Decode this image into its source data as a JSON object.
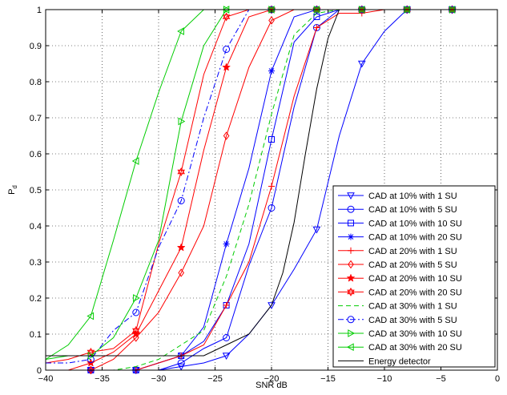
{
  "chart_data": {
    "type": "line",
    "title": "",
    "xlabel": "SNR dB",
    "ylabel": "P",
    "ylabel_subscript": "d",
    "xlim": [
      -40,
      0
    ],
    "ylim": [
      0,
      1
    ],
    "xticks": [
      -40,
      -35,
      -30,
      -25,
      -20,
      -15,
      -10,
      -5,
      0
    ],
    "yticks": [
      0,
      0.1,
      0.2,
      0.3,
      0.4,
      0.5,
      0.6,
      0.7,
      0.8,
      0.9,
      1
    ],
    "xtick_labels": [
      "−40",
      "−35",
      "−30",
      "−25",
      "−20",
      "−15",
      "−10",
      "−5",
      "0"
    ],
    "ytick_labels": [
      "0",
      "0.1",
      "0.2",
      "0.3",
      "0.4",
      "0.5",
      "0.6",
      "0.7",
      "0.8",
      "0.9",
      "1"
    ],
    "grid": true,
    "legend_position": "lower-right",
    "series": [
      {
        "name": "CAD at 10% with 1 SU",
        "color": "#0000ff",
        "dash": "solid",
        "marker": "triangle-down",
        "x": [
          -40,
          -38,
          -36,
          -34,
          -32,
          -30,
          -28,
          -26,
          -24,
          -22,
          -20,
          -18,
          -16,
          -14,
          -12,
          -10,
          -8,
          -6,
          -4,
          -2,
          0
        ],
        "y": [
          0,
          0,
          0,
          0,
          0,
          0,
          0.01,
          0.02,
          0.04,
          0.1,
          0.18,
          0.28,
          0.39,
          0.65,
          0.85,
          0.94,
          1,
          1,
          1,
          1,
          1
        ]
      },
      {
        "name": "CAD at 10% with 5 SU",
        "color": "#0000ff",
        "dash": "solid",
        "marker": "circle",
        "x": [
          -40,
          -38,
          -36,
          -34,
          -32,
          -30,
          -28,
          -26,
          -24,
          -22,
          -20,
          -18,
          -16,
          -14,
          -12,
          -10,
          -8,
          -6,
          -4,
          -2,
          0
        ],
        "y": [
          0,
          0,
          0,
          0,
          0,
          0,
          0.02,
          0.06,
          0.09,
          0.29,
          0.45,
          0.73,
          0.95,
          1,
          1,
          1,
          1,
          1,
          1,
          1,
          1
        ]
      },
      {
        "name": "CAD at 10% with 10 SU",
        "color": "#0000ff",
        "dash": "solid",
        "marker": "square",
        "x": [
          -40,
          -38,
          -36,
          -34,
          -32,
          -30,
          -28,
          -26,
          -24,
          -22,
          -20,
          -18,
          -16,
          -14,
          -12,
          -10,
          -8,
          -6,
          -4,
          -2,
          0
        ],
        "y": [
          0,
          0,
          0,
          0,
          0,
          0.02,
          0.04,
          0.08,
          0.18,
          0.35,
          0.64,
          0.91,
          0.98,
          1,
          1,
          1,
          1,
          1,
          1,
          1,
          1
        ]
      },
      {
        "name": "CAD at 10% with 20 SU",
        "color": "#0000ff",
        "dash": "solid",
        "marker": "asterisk",
        "x": [
          -40,
          -38,
          -36,
          -34,
          -32,
          -30,
          -28,
          -26,
          -24,
          -22,
          -20,
          -18,
          -16,
          -14,
          -12,
          -10,
          -8,
          -6,
          -4,
          -2,
          0
        ],
        "y": [
          0,
          0,
          0,
          0,
          0,
          0.02,
          0.04,
          0.12,
          0.35,
          0.56,
          0.83,
          0.98,
          1,
          1,
          1,
          1,
          1,
          1,
          1,
          1,
          1
        ]
      },
      {
        "name": "CAD at 20% with 1 SU",
        "color": "#ff0000",
        "dash": "solid",
        "marker": "plus",
        "x": [
          -40,
          -38,
          -36,
          -34,
          -32,
          -30,
          -28,
          -26,
          -24,
          -22,
          -20,
          -18,
          -16,
          -14,
          -12,
          -10,
          -8,
          -6,
          -4,
          -2,
          0
        ],
        "y": [
          0,
          0,
          0,
          0,
          0,
          0.02,
          0.04,
          0.07,
          0.18,
          0.3,
          0.51,
          0.76,
          0.95,
          0.99,
          0.99,
          1,
          1,
          1,
          1,
          1,
          1
        ]
      },
      {
        "name": "CAD at 20% with 5 SU",
        "color": "#ff0000",
        "dash": "solid",
        "marker": "diamond",
        "x": [
          -40,
          -38,
          -36,
          -34,
          -32,
          -30,
          -28,
          -26,
          -24,
          -22,
          -20,
          -18,
          -16,
          -14,
          -12,
          -10,
          -8,
          -6,
          -4,
          -2,
          0
        ],
        "y": [
          0,
          0,
          0,
          0.03,
          0.09,
          0.16,
          0.27,
          0.4,
          0.65,
          0.84,
          0.97,
          1,
          1,
          1,
          1,
          1,
          1,
          1,
          1,
          1,
          1
        ]
      },
      {
        "name": "CAD at 20% with 10 SU",
        "color": "#ff0000",
        "dash": "solid",
        "marker": "star",
        "x": [
          -40,
          -38,
          -36,
          -34,
          -32,
          -30,
          -28,
          -26,
          -24,
          -22,
          -20,
          -18,
          -16,
          -14,
          -12,
          -10,
          -8,
          -6,
          -4,
          -2,
          0
        ],
        "y": [
          0,
          0,
          0.02,
          0.05,
          0.1,
          0.22,
          0.34,
          0.61,
          0.84,
          0.98,
          1,
          1,
          1,
          1,
          1,
          1,
          1,
          1,
          1,
          1,
          1
        ]
      },
      {
        "name": "CAD at 20% with 20 SU",
        "color": "#ff0000",
        "dash": "solid",
        "marker": "hexagram",
        "x": [
          -40,
          -38,
          -36,
          -34,
          -32,
          -30,
          -28,
          -26,
          -24,
          -22,
          -20,
          -18,
          -16,
          -14,
          -12,
          -10,
          -8,
          -6,
          -4,
          -2,
          0
        ],
        "y": [
          0.02,
          0.03,
          0.05,
          0.06,
          0.11,
          0.35,
          0.55,
          0.82,
          0.98,
          1,
          1,
          1,
          1,
          1,
          1,
          1,
          1,
          1,
          1,
          1,
          1
        ]
      },
      {
        "name": "CAD at 30% with 1 SU",
        "color": "#00cc00",
        "dash": "dashed",
        "marker": "none",
        "x": [
          -40,
          -38,
          -36,
          -34,
          -32,
          -30,
          -28,
          -26,
          -24,
          -22,
          -20,
          -18,
          -16,
          -14,
          -12,
          -10,
          -8,
          -6,
          -4,
          -2,
          0
        ],
        "y": [
          0,
          0,
          0,
          0,
          0.01,
          0.03,
          0.07,
          0.11,
          0.26,
          0.46,
          0.71,
          0.93,
          0.99,
          1,
          1,
          1,
          1,
          1,
          1,
          1,
          1
        ]
      },
      {
        "name": "CAD at 30% with 5 SU",
        "color": "#0000ff",
        "dash": "dashdot",
        "marker": "circle",
        "x": [
          -40,
          -38,
          -36,
          -34,
          -32,
          -30,
          -28,
          -26,
          -24,
          -22,
          -20,
          -18,
          -16,
          -14,
          -12,
          -10,
          -8,
          -6,
          -4,
          -2,
          0
        ],
        "y": [
          0.02,
          0.02,
          0.03,
          0.11,
          0.16,
          0.34,
          0.47,
          0.7,
          0.89,
          1,
          1,
          1,
          1,
          1,
          1,
          1,
          1,
          1,
          1,
          1,
          1
        ]
      },
      {
        "name": "CAD at 30% with 10 SU",
        "color": "#00cc00",
        "dash": "solid",
        "marker": "triangle-right",
        "x": [
          -40,
          -38,
          -36,
          -34,
          -32,
          -30,
          -28,
          -26,
          -24,
          -22,
          -20,
          -18,
          -16,
          -14,
          -12,
          -10,
          -8,
          -6,
          -4,
          -2,
          0
        ],
        "y": [
          0.03,
          0.04,
          0.04,
          0.09,
          0.2,
          0.36,
          0.69,
          0.9,
          1,
          1,
          1,
          1,
          1,
          1,
          1,
          1,
          1,
          1,
          1,
          1,
          1
        ]
      },
      {
        "name": "CAD at 30% with 20 SU",
        "color": "#00cc00",
        "dash": "solid",
        "marker": "triangle-left",
        "x": [
          -40,
          -38,
          -36,
          -34,
          -32,
          -30,
          -28,
          -26,
          -24,
          -22,
          -20,
          -18,
          -16,
          -14,
          -12,
          -10,
          -8,
          -6,
          -4,
          -2,
          0
        ],
        "y": [
          0.03,
          0.07,
          0.15,
          0.36,
          0.58,
          0.77,
          0.94,
          1,
          1,
          1,
          1,
          1,
          1,
          1,
          1,
          1,
          1,
          1,
          1,
          1,
          1
        ]
      },
      {
        "name": "Energy detector",
        "color": "#000000",
        "dash": "solid",
        "marker": "none",
        "x": [
          -40,
          -38,
          -36,
          -34,
          -32,
          -30,
          -28,
          -26,
          -24,
          -22,
          -21,
          -20,
          -19,
          -18,
          -17,
          -16,
          -15,
          -14,
          -12,
          -10,
          0
        ],
        "y": [
          0.04,
          0.04,
          0.04,
          0.04,
          0.04,
          0.04,
          0.04,
          0.04,
          0.07,
          0.1,
          0.14,
          0.18,
          0.27,
          0.41,
          0.6,
          0.78,
          0.92,
          1,
          1,
          1,
          1
        ]
      }
    ]
  }
}
